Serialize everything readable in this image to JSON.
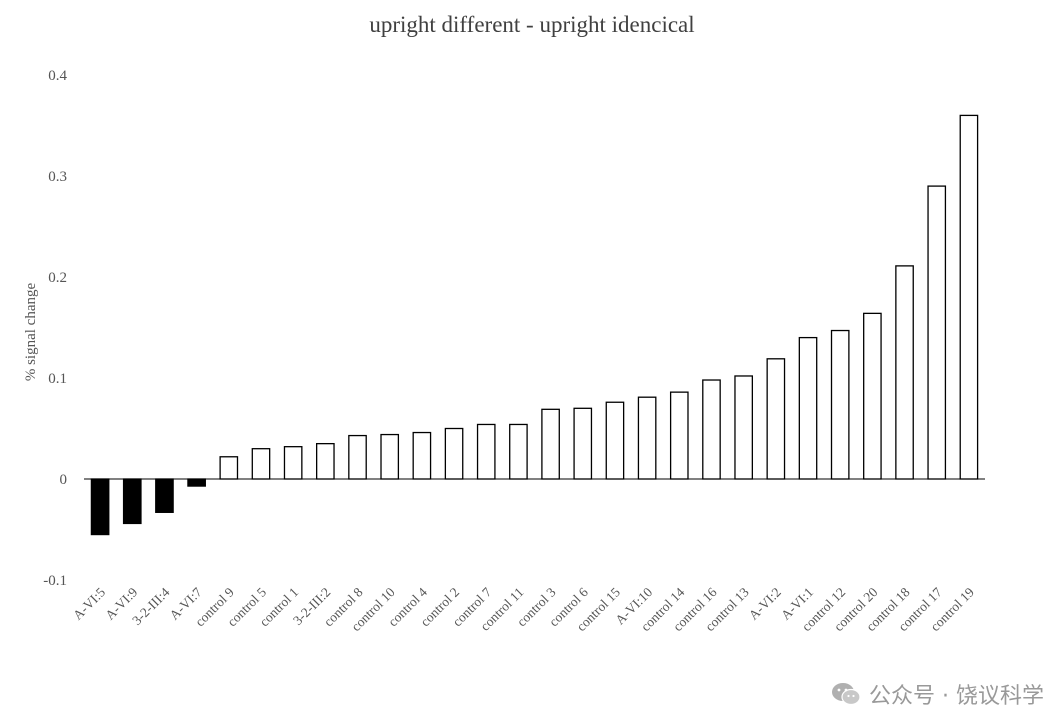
{
  "chart_data": {
    "type": "bar",
    "title": "upright different - upright idencical",
    "xlabel": "",
    "ylabel": "% signal change",
    "ylim": [
      -0.1,
      0.4
    ],
    "yticks": [
      "-0.1",
      "0",
      "0.1",
      "0.2",
      "0.3",
      "0.4"
    ],
    "grid": false,
    "categories": [
      "A-VI:5",
      "A-VI:9",
      "3-2-III:4",
      "A-VI:7",
      "control 9",
      "control 5",
      "control 1",
      "3-2-III:2",
      "control 8",
      "control 10",
      "control 4",
      "control 2",
      "control 7",
      "control 11",
      "control 3",
      "control 6",
      "control 15",
      "A-VI:10",
      "control 14",
      "control 16",
      "control 13",
      "A-VI:2",
      "A-VI:1",
      "control 12",
      "control 20",
      "control 18",
      "control 17",
      "control 19"
    ],
    "values": [
      -0.055,
      -0.044,
      -0.033,
      -0.007,
      0.022,
      0.03,
      0.032,
      0.035,
      0.043,
      0.044,
      0.046,
      0.05,
      0.054,
      0.054,
      0.069,
      0.07,
      0.076,
      0.081,
      0.086,
      0.098,
      0.102,
      0.119,
      0.14,
      0.147,
      0.164,
      0.211,
      0.29,
      0.36
    ],
    "colors": {
      "negative_fill": "#000000",
      "positive_fill": "#ffffff",
      "stroke": "#000000"
    }
  },
  "watermark": {
    "text": "公众号 · 饶议科学",
    "icon": "wechat-icon"
  }
}
